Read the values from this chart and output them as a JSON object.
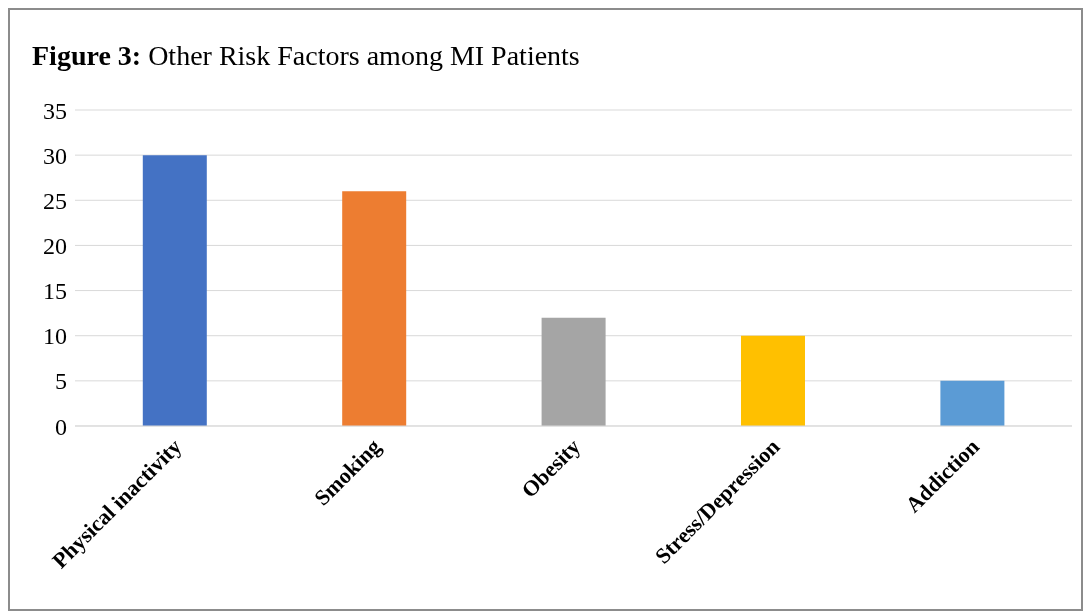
{
  "chart_data": {
    "type": "bar",
    "title": "Figure 3: Other Risk Factors among MI Patients",
    "categories": [
      "Physical inactivity",
      "Smoking",
      "Obesity",
      "Stress/Depression",
      "Addiction"
    ],
    "values": [
      30,
      26,
      12,
      10,
      5
    ],
    "colors": [
      "#4472c4",
      "#ed7d31",
      "#a5a5a5",
      "#ffc000",
      "#5b9bd5"
    ],
    "ylim": [
      0,
      35
    ],
    "yticks": [
      0,
      5,
      10,
      15,
      20,
      25,
      30,
      35
    ],
    "grid": "y"
  }
}
